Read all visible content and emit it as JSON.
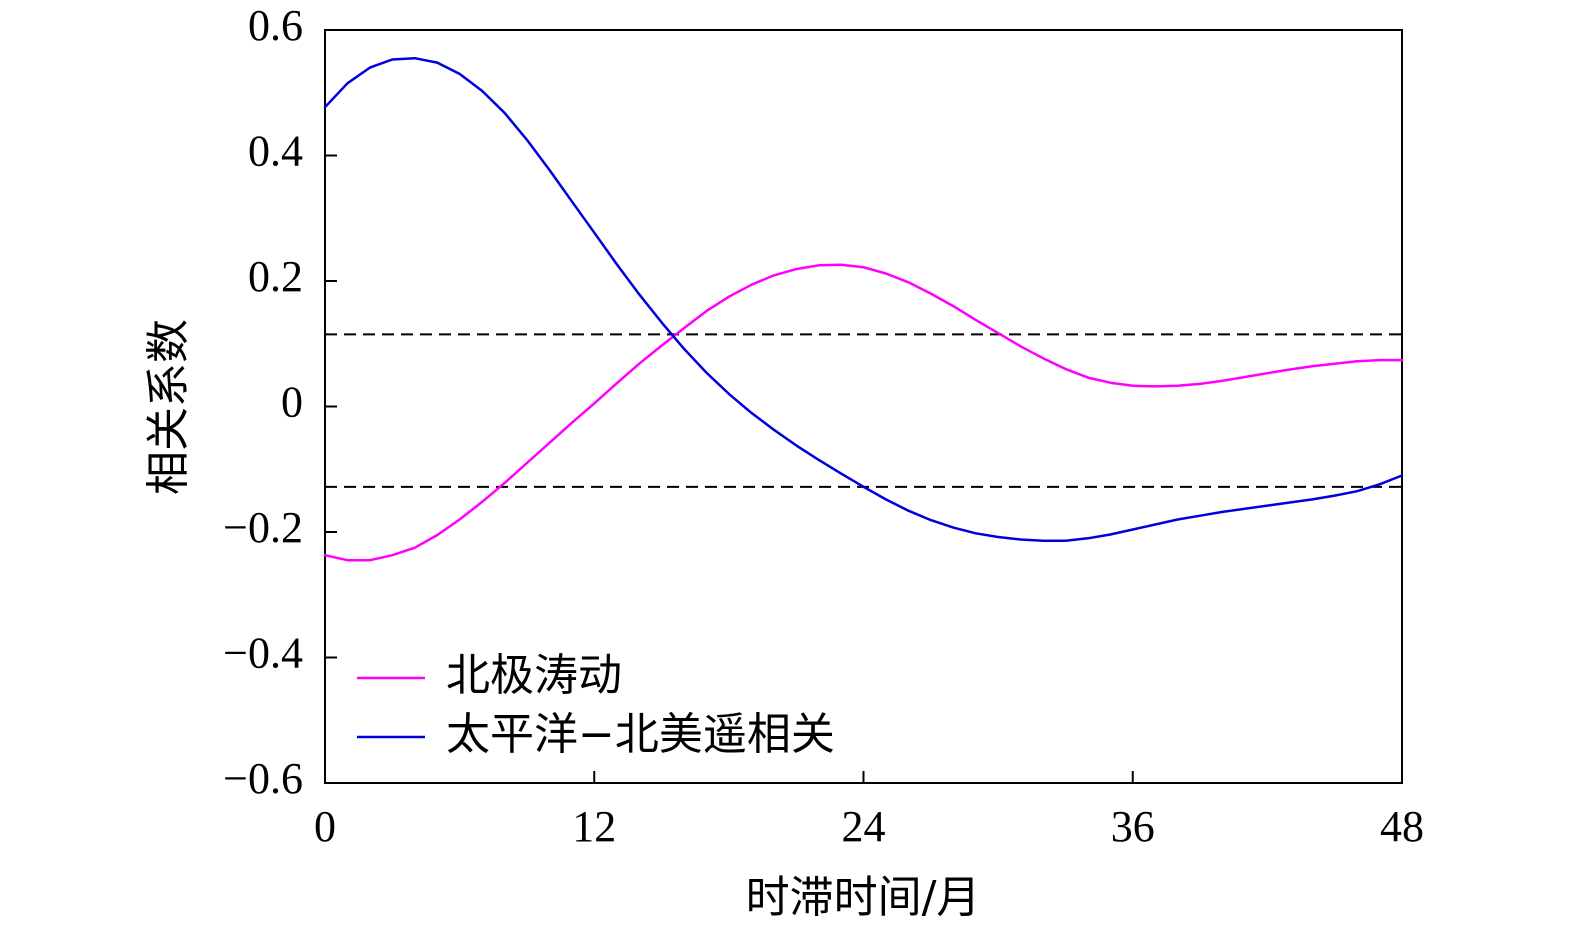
{
  "chart_data": {
    "type": "line",
    "xlabel": "时滞时间/月",
    "ylabel": "相关系数",
    "xlim": [
      0,
      48
    ],
    "ylim": [
      -0.6,
      0.6
    ],
    "xticks": [
      0,
      12,
      24,
      36,
      48
    ],
    "xtick_labels": [
      "0",
      "12",
      "24",
      "36",
      "48"
    ],
    "yticks": [
      0.6,
      0.4,
      0.2,
      0,
      -0.2,
      -0.4,
      -0.6
    ],
    "ytick_labels": [
      "0.6",
      "0.4",
      "0.2",
      "0",
      "−0.2",
      "−0.4",
      "−0.6"
    ],
    "grid": false,
    "legend_position": "lower-left",
    "series": [
      {
        "name": "北极涛动",
        "color": "#ff00ff",
        "x": [
          0,
          1,
          2,
          3,
          4,
          5,
          6,
          7,
          8,
          9,
          10,
          11,
          12,
          13,
          14,
          15,
          16,
          17,
          18,
          19,
          20,
          21,
          22,
          23,
          24,
          25,
          26,
          27,
          28,
          29,
          30,
          31,
          32,
          33,
          34,
          35,
          36,
          37,
          38,
          39,
          40,
          41,
          42,
          43,
          44,
          45,
          46,
          47,
          48
        ],
        "values": [
          -0.237,
          -0.245,
          -0.245,
          -0.237,
          -0.225,
          -0.205,
          -0.18,
          -0.152,
          -0.122,
          -0.09,
          -0.058,
          -0.026,
          0.005,
          0.037,
          0.068,
          0.097,
          0.125,
          0.152,
          0.175,
          0.194,
          0.209,
          0.219,
          0.225,
          0.226,
          0.222,
          0.212,
          0.198,
          0.18,
          0.16,
          0.138,
          0.117,
          0.096,
          0.077,
          0.06,
          0.046,
          0.038,
          0.033,
          0.032,
          0.033,
          0.036,
          0.041,
          0.047,
          0.053,
          0.059,
          0.064,
          0.068,
          0.072,
          0.074,
          0.074
        ]
      },
      {
        "name": "太平洋−北美遥相关",
        "color": "#0000dd",
        "x": [
          0,
          1,
          2,
          3,
          4,
          5,
          6,
          7,
          8,
          9,
          10,
          11,
          12,
          13,
          14,
          15,
          16,
          17,
          18,
          19,
          20,
          21,
          22,
          23,
          24,
          25,
          26,
          27,
          28,
          29,
          30,
          31,
          32,
          33,
          34,
          35,
          36,
          37,
          38,
          39,
          40,
          41,
          42,
          43,
          44,
          45,
          46,
          47,
          48
        ],
        "values": [
          0.477,
          0.515,
          0.54,
          0.553,
          0.555,
          0.548,
          0.53,
          0.503,
          0.468,
          0.425,
          0.377,
          0.327,
          0.277,
          0.227,
          0.179,
          0.134,
          0.092,
          0.054,
          0.02,
          -0.01,
          -0.037,
          -0.062,
          -0.085,
          -0.107,
          -0.128,
          -0.148,
          -0.166,
          -0.181,
          -0.193,
          -0.202,
          -0.208,
          -0.212,
          -0.214,
          -0.214,
          -0.21,
          -0.204,
          -0.196,
          -0.188,
          -0.18,
          -0.174,
          -0.168,
          -0.163,
          -0.158,
          -0.153,
          -0.148,
          -0.142,
          -0.135,
          -0.124,
          -0.11
        ]
      }
    ],
    "reference_lines": [
      {
        "orientation": "horizontal",
        "y": 0.115,
        "style": "dashed",
        "color": "#000000"
      },
      {
        "orientation": "horizontal",
        "y": -0.128,
        "style": "dashed",
        "color": "#000000"
      }
    ]
  }
}
